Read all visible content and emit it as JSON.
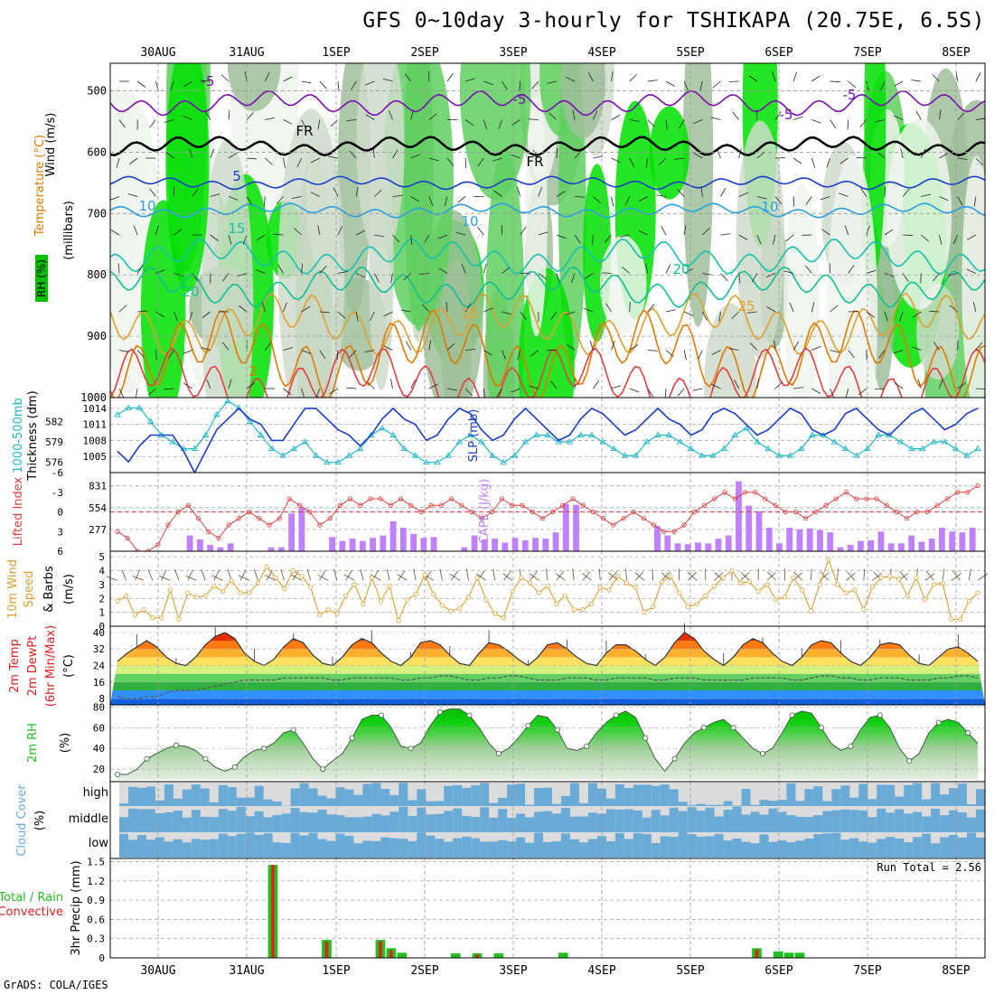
{
  "title": "GFS 0~10day 3-hourly for TSHIKAPA (20.75E, 6.5S)",
  "credit": "GrADS: COLA/IGES",
  "colors": {
    "rh_green": "#00e000",
    "temp_orange": "#e07a00",
    "cape": "#c080ff",
    "slp": "#1a3ec8",
    "thick": "#20b8c8",
    "li": "#e04040",
    "wind": "#e0a030",
    "precip_total": "#20c020",
    "precip_conv": "#e02020",
    "cloud": "#6aaad6",
    "rh2m": "#20c020"
  },
  "chart_data": {
    "type": "meteogram",
    "date_labels": [
      "30AUG",
      "31AUG",
      "1SEP",
      "2SEP",
      "3SEP",
      "4SEP",
      "5SEP",
      "6SEP",
      "7SEP",
      "8SEP"
    ],
    "panels": {
      "upper_air": {
        "ylabel": "(millibars)",
        "legend": [
          "Wind (m/s)",
          "Temperature (°C)",
          "RH (%)"
        ],
        "yticks": [
          500,
          600,
          700,
          800,
          900,
          1000
        ],
        "contour_labels": [
          "-5",
          "-5",
          "-5",
          "-5",
          "FR",
          "FR",
          "5",
          "10",
          "10",
          "10",
          "15",
          "20",
          "20",
          "25",
          "25",
          "2"
        ]
      },
      "thickness_slp": {
        "left_label": "1000-500mb Thickness (dm)",
        "right_label": "SLP (mb)",
        "thick_ticks": [
          582,
          579,
          576
        ],
        "slp_ticks": [
          1014,
          1011,
          1008,
          1005
        ],
        "slp": [
          1006,
          1004,
          1007,
          1009,
          1009,
          1009,
          1006,
          1002,
          1006,
          1010,
          1012,
          1014,
          1012,
          1011,
          1008,
          1008,
          1011,
          1014,
          1014,
          1012,
          1010,
          1009,
          1007,
          1009,
          1012,
          1014,
          1012,
          1011,
          1008,
          1009,
          1012,
          1014,
          1013,
          1010,
          1008,
          1009,
          1012,
          1014,
          1012,
          1010,
          1008,
          1009,
          1012,
          1014,
          1013,
          1011,
          1009,
          1010,
          1012,
          1014,
          1012,
          1011,
          1009,
          1010,
          1013,
          1014,
          1013,
          1011,
          1009,
          1010,
          1012,
          1014,
          1013,
          1010,
          1009,
          1010,
          1013,
          1014,
          1012,
          1010,
          1009,
          1011,
          1013,
          1014,
          1012,
          1010,
          1011,
          1013,
          1014
        ],
        "thickness": [
          583,
          584,
          584,
          582,
          580,
          579,
          578,
          578,
          580,
          583,
          585,
          584,
          582,
          580,
          578,
          577,
          578,
          579,
          577,
          576,
          576,
          577,
          578,
          580,
          581,
          580,
          578,
          577,
          576,
          576,
          577,
          579,
          580,
          579,
          577,
          576,
          577,
          579,
          580,
          580,
          579,
          579,
          580,
          580,
          579,
          578,
          577,
          577,
          579,
          580,
          580,
          579,
          578,
          577,
          577,
          578,
          580,
          581,
          579,
          578,
          577,
          577,
          578,
          580,
          580,
          579,
          578,
          577,
          578,
          580,
          580,
          579,
          578,
          578,
          579,
          579,
          578,
          577,
          578
        ]
      },
      "cape_li": {
        "left_label": "Lifted Index",
        "right_label": "CAPE (J/kg)",
        "li_ticks": [
          -6,
          -3,
          0,
          3,
          6
        ],
        "cape_ticks": [
          831,
          554,
          277
        ],
        "cape": [
          0,
          0,
          0,
          0,
          0,
          0,
          0,
          200,
          150,
          80,
          50,
          100,
          0,
          0,
          0,
          50,
          50,
          480,
          550,
          0,
          0,
          180,
          130,
          160,
          130,
          170,
          200,
          380,
          300,
          220,
          170,
          180,
          0,
          0,
          50,
          200,
          150,
          160,
          110,
          170,
          140,
          170,
          160,
          240,
          600,
          590,
          0,
          0,
          0,
          0,
          0,
          0,
          0,
          320,
          200,
          100,
          90,
          110,
          100,
          160,
          200,
          890,
          580,
          510,
          300,
          100,
          300,
          280,
          290,
          270,
          240,
          50,
          80,
          130,
          140,
          250,
          100,
          100,
          200,
          120,
          160,
          300,
          250,
          240,
          300
        ],
        "li": [
          3,
          4,
          6,
          6,
          5,
          2,
          0,
          -1,
          1,
          3,
          4,
          2,
          1,
          0,
          1,
          2,
          1,
          -2,
          -1,
          0,
          2,
          1,
          -1,
          -2,
          -1,
          -2,
          -2,
          -1,
          -2,
          -1,
          0,
          -1,
          -1,
          -2,
          -1,
          0,
          1,
          0,
          -2,
          -1,
          -1,
          0,
          1,
          0,
          -1,
          -2,
          -1,
          0,
          1,
          2,
          1,
          0,
          1,
          2,
          3,
          3,
          2,
          0,
          -1,
          -2,
          -3,
          -2,
          -3,
          -3,
          -2,
          -1,
          0,
          0,
          1,
          0,
          -1,
          -2,
          -3,
          -2,
          -2,
          -2,
          -1,
          0,
          1,
          0,
          0,
          -1,
          -2,
          -3,
          -3,
          -4
        ]
      },
      "wind10m": {
        "ylabel": "10m Wind Speed & Barbs (m/s)",
        "yticks": [
          0,
          1,
          2,
          3,
          4,
          5
        ],
        "speed": [
          1.8,
          2.2,
          0.8,
          1.2,
          0.6,
          0.6,
          2.6,
          0.5,
          2.4,
          2.1,
          2.2,
          2.9,
          2.5,
          3.3,
          2.4,
          2.4,
          3.1,
          4.3,
          3.5,
          2.7,
          4.0,
          3.6,
          2.8,
          0.8,
          1.2,
          0.9,
          2.2,
          3.0,
          1.6,
          3.5,
          1.8,
          2.9,
          0.4,
          1.9,
          2.3,
          3.7,
          2.3,
          1.5,
          1.1,
          1.3,
          2.1,
          3.5,
          1.9,
          0.9,
          0.6,
          2.5,
          3.5,
          3.1,
          2.4,
          2.9,
          1.6,
          2.2,
          1.2,
          1.2,
          1.6,
          2.8,
          2.6,
          3.6,
          3.1,
          2.8,
          1.0,
          1.4,
          3.2,
          3.6,
          2.4,
          1.4,
          1.6,
          2.2,
          2.9,
          3.5,
          4.0,
          3.1,
          3.2,
          2.5,
          3.0,
          1.9,
          2.1,
          3.5,
          2.6,
          1.1,
          3.0,
          4.8,
          3.0,
          2.4,
          2.6,
          1.2,
          2.8,
          3.5,
          3.6,
          3.4,
          2.2,
          3.5,
          1.9,
          3.0,
          3.1,
          0.5,
          0.5,
          1.8,
          2.4
        ]
      },
      "temp2m": {
        "ylabel": "2m Temp 2m DewPt (6hr Min/Max) (°C)",
        "yticks": [
          8,
          16,
          24,
          32,
          40
        ],
        "temp": [
          26,
          30,
          33,
          36,
          33,
          28,
          25,
          24,
          28,
          34,
          38,
          40,
          37,
          30,
          26,
          24,
          27,
          33,
          37,
          35,
          29,
          25,
          24,
          28,
          34,
          37,
          35,
          30,
          26,
          24,
          28,
          35,
          36,
          34,
          29,
          25,
          24,
          30,
          35,
          34,
          31,
          27,
          24,
          28,
          34,
          35,
          32,
          28,
          25,
          24,
          30,
          34,
          34,
          31,
          27,
          24,
          28,
          35,
          40,
          37,
          31,
          27,
          24,
          28,
          34,
          37,
          35,
          30,
          26,
          24,
          28,
          34,
          36,
          35,
          30,
          26,
          24,
          28,
          34,
          35,
          34,
          29,
          25,
          24,
          28,
          32,
          33,
          30,
          26
        ],
        "dewpt": [
          9,
          8,
          8,
          9,
          9,
          11,
          12,
          12,
          12,
          13,
          14,
          15,
          16,
          17,
          17,
          17,
          17,
          18,
          18,
          18,
          18,
          18,
          17,
          17,
          18,
          18,
          18,
          18,
          18,
          17,
          17,
          18,
          18,
          19,
          19,
          18,
          17,
          17,
          18,
          18,
          19,
          19,
          18,
          17,
          17,
          17,
          18,
          18,
          18,
          17,
          17,
          18,
          18,
          18,
          18,
          17,
          17,
          18,
          18,
          18,
          17,
          17,
          17,
          17,
          17,
          18,
          18,
          18,
          18,
          17,
          17,
          18,
          19,
          19,
          18,
          18,
          17,
          17,
          18,
          18,
          18,
          17,
          17,
          17,
          18,
          18,
          19,
          19,
          18
        ]
      },
      "rh2m": {
        "ylabel": "2m RH (%)",
        "yticks": [
          20,
          40,
          60,
          80
        ],
        "rh": [
          15,
          15,
          20,
          30,
          35,
          40,
          43,
          42,
          38,
          30,
          22,
          18,
          22,
          32,
          38,
          40,
          45,
          55,
          58,
          45,
          30,
          20,
          28,
          35,
          50,
          68,
          72,
          72,
          60,
          42,
          40,
          45,
          62,
          75,
          78,
          78,
          72,
          60,
          45,
          35,
          40,
          50,
          62,
          72,
          70,
          58,
          40,
          38,
          42,
          55,
          65,
          72,
          76,
          70,
          50,
          30,
          18,
          30,
          45,
          55,
          60,
          65,
          68,
          60,
          50,
          40,
          35,
          40,
          55,
          72,
          76,
          74,
          60,
          45,
          38,
          42,
          58,
          70,
          72,
          60,
          40,
          28,
          35,
          55,
          65,
          68,
          65,
          55,
          45
        ]
      },
      "cloud": {
        "ylabel": "Cloud Cover (%)",
        "levels": [
          "high",
          "middle",
          "low"
        ]
      },
      "precip": {
        "ylabel": "3hr Precip (mm)",
        "left_labels": [
          "Total / Rain",
          "Convective"
        ],
        "yticks": [
          0,
          0.3,
          0.6,
          0.9,
          1.2,
          1.5
        ],
        "run_total": "Run Total = 2.56",
        "bars": [
          [
            14,
            1.45,
            1.45
          ],
          [
            19,
            0.28,
            0.25
          ],
          [
            24,
            0.28,
            0.26
          ],
          [
            25,
            0.15,
            0.12
          ],
          [
            26,
            0.08,
            0
          ],
          [
            31,
            0.07,
            0
          ],
          [
            33,
            0.07,
            0.05
          ],
          [
            35,
            0.07,
            0
          ],
          [
            41,
            0.08,
            0
          ],
          [
            59,
            0.15,
            0.13
          ],
          [
            61,
            0.1,
            0.0
          ],
          [
            62,
            0.08,
            0
          ],
          [
            63,
            0.08,
            0
          ]
        ]
      }
    }
  }
}
